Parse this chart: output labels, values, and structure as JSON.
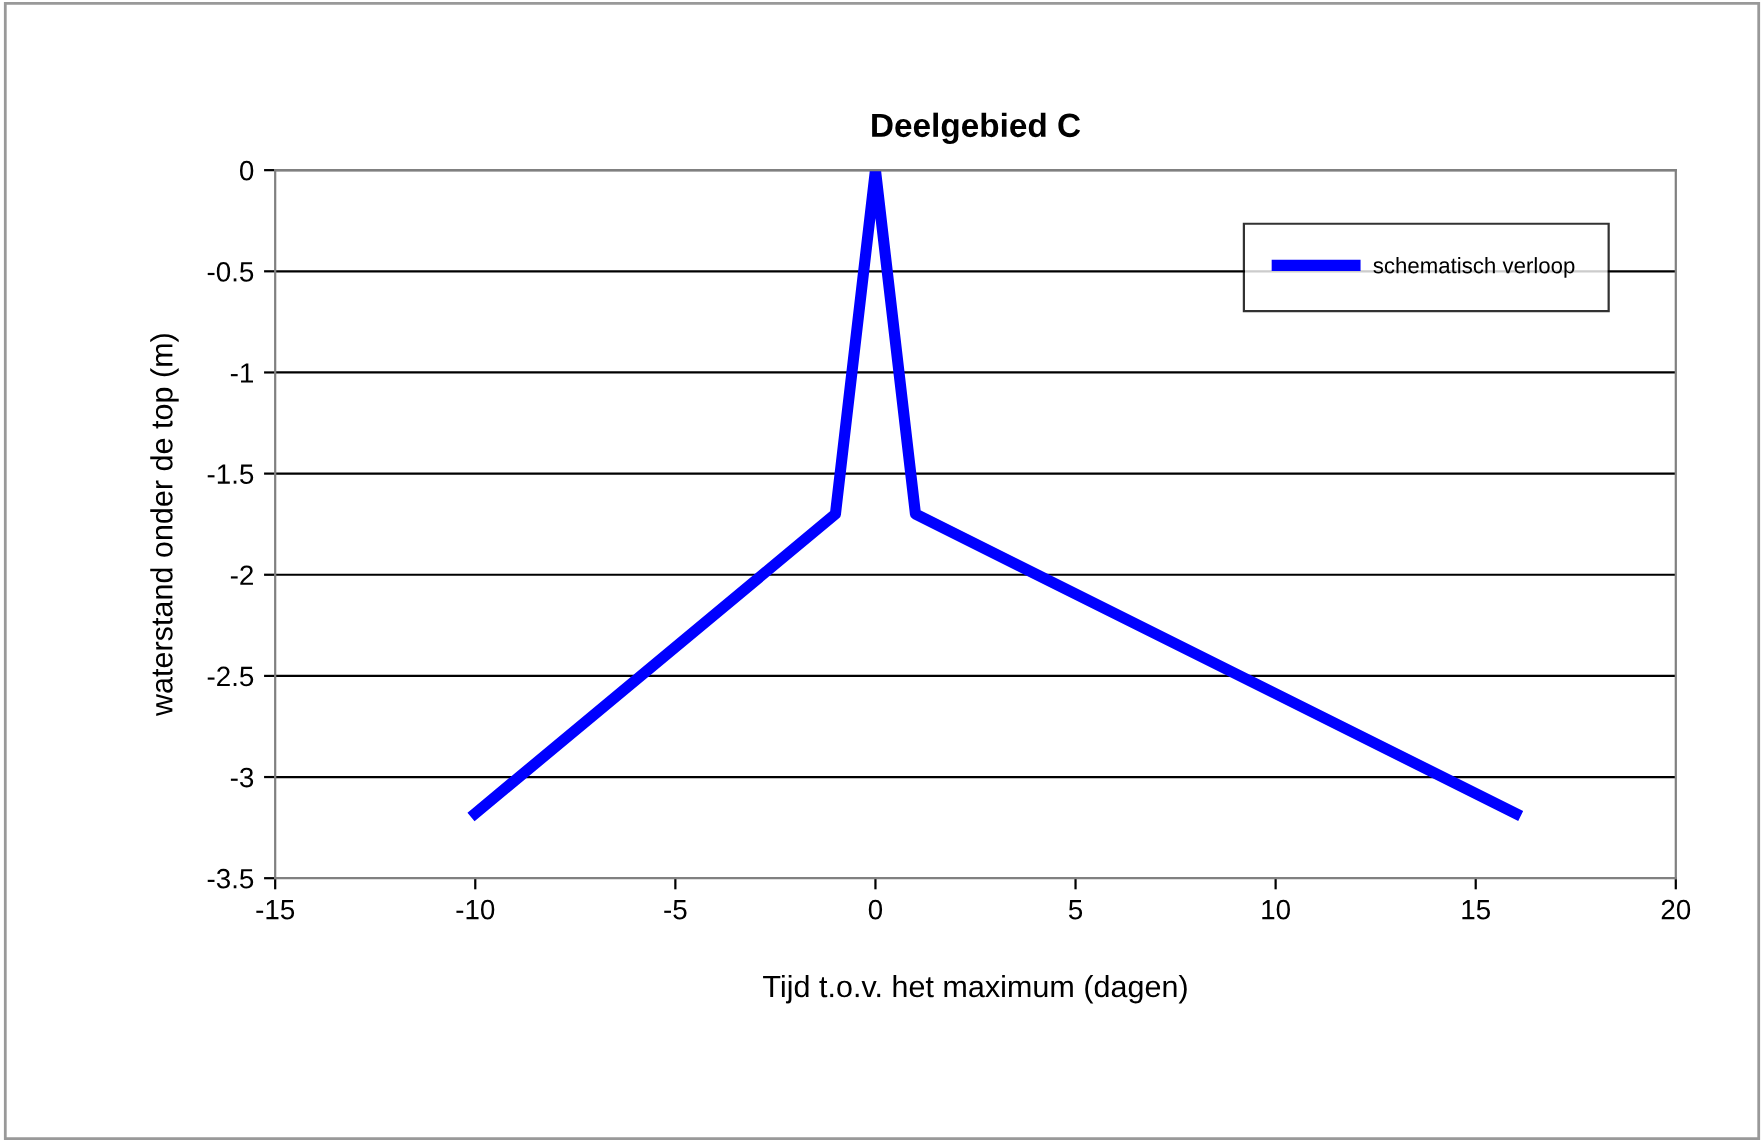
{
  "chart_data": {
    "type": "line",
    "title": "Deelgebied C",
    "xlabel": "Tijd t.o.v. het maximum (dagen)",
    "ylabel": "waterstand onder de top (m)",
    "x": [
      -10,
      -1,
      0,
      1,
      16
    ],
    "series": [
      {
        "name": "schematisch verloop",
        "color": "#0000ff",
        "values": [
          -3.18,
          -1.7,
          0,
          -1.7,
          -3.18
        ]
      }
    ],
    "xlim": [
      -15,
      20
    ],
    "xticks": [
      -15,
      -10,
      -5,
      0,
      5,
      10,
      15,
      20
    ],
    "ylim": [
      -3.5,
      0
    ],
    "yticks": [
      -3.5,
      -3,
      -2.5,
      -2,
      -1.5,
      -1,
      -0.5,
      0
    ],
    "grid": "y",
    "legend": "top right",
    "marker": "none",
    "line_style": "solid"
  }
}
